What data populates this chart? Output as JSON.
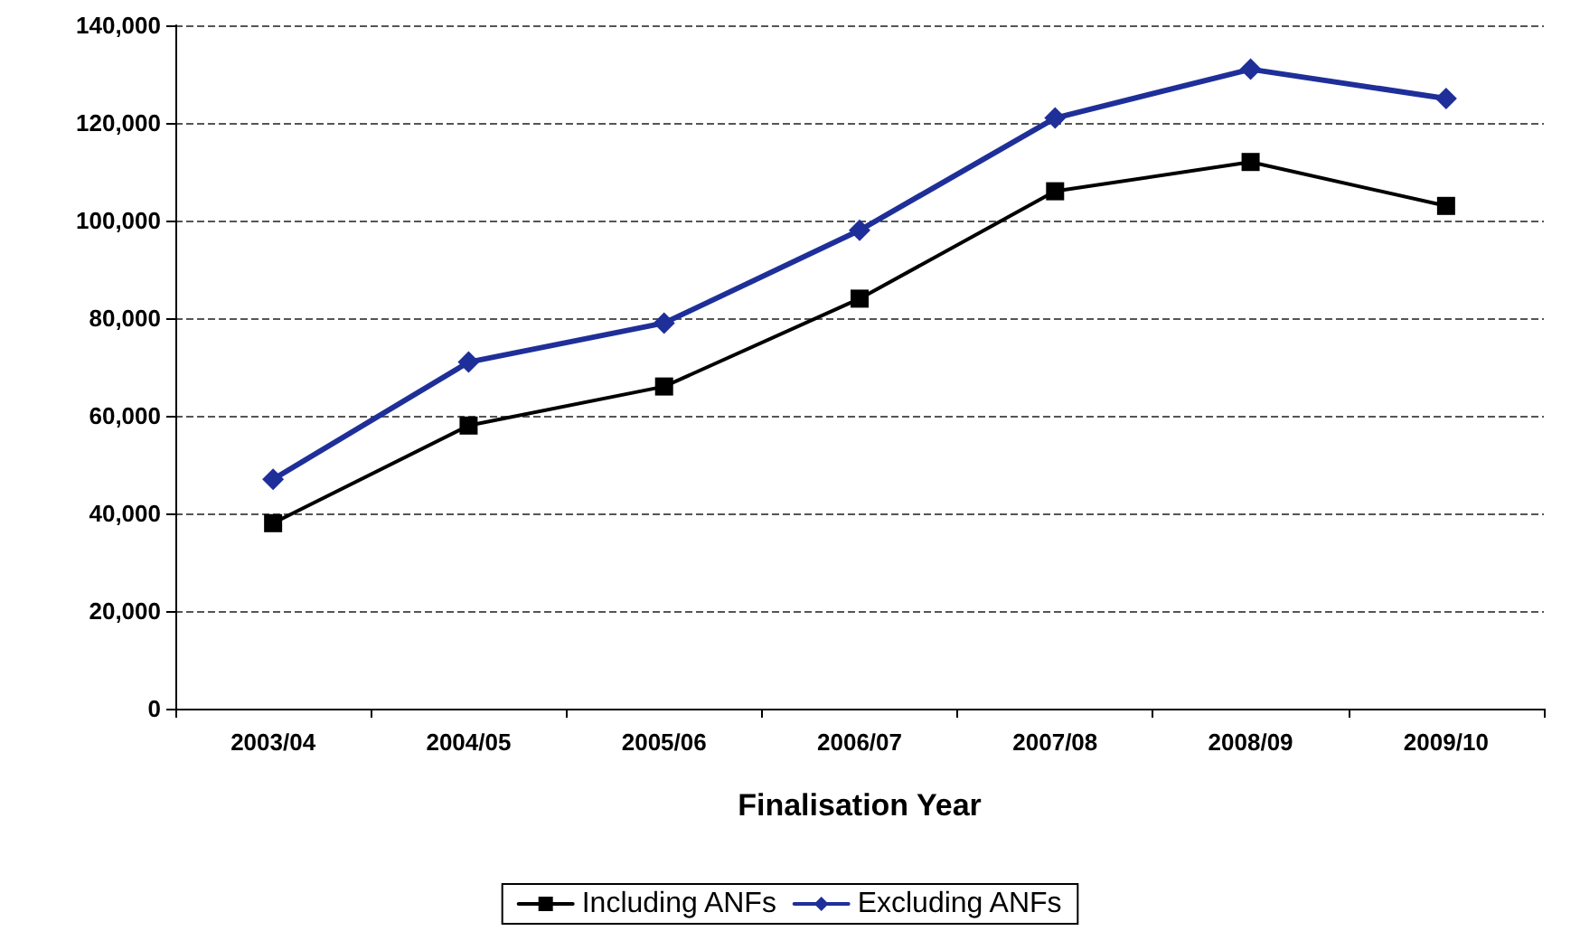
{
  "chart_data": {
    "type": "line",
    "xlabel": "Finalisation Year",
    "categories": [
      "2003/04",
      "2004/05",
      "2005/06",
      "2006/07",
      "2007/08",
      "2008/09",
      "2009/10"
    ],
    "series": [
      {
        "name": "Including ANFs",
        "color": "#000000",
        "marker": "square",
        "values": [
          38000,
          58000,
          66000,
          84000,
          106000,
          112000,
          103000
        ]
      },
      {
        "name": "Excluding ANFs",
        "color": "#1f2f99",
        "marker": "diamond",
        "values": [
          47000,
          71000,
          79000,
          98000,
          121000,
          131000,
          125000
        ]
      }
    ],
    "ylim": [
      0,
      140000
    ],
    "yticks": [
      0,
      {
        "value": 20000,
        "label": "20,000"
      },
      {
        "value": 40000,
        "label": "40,000"
      },
      {
        "value": 60000,
        "label": "60,000"
      },
      {
        "value": 80000,
        "label": "80,000"
      },
      {
        "value": 100000,
        "label": "100,000"
      },
      {
        "value": 120000,
        "label": "120,000"
      },
      {
        "value": 140000,
        "label": "140,000"
      }
    ],
    "grid": "y",
    "legend": "bottom",
    "line_style": "solid"
  }
}
